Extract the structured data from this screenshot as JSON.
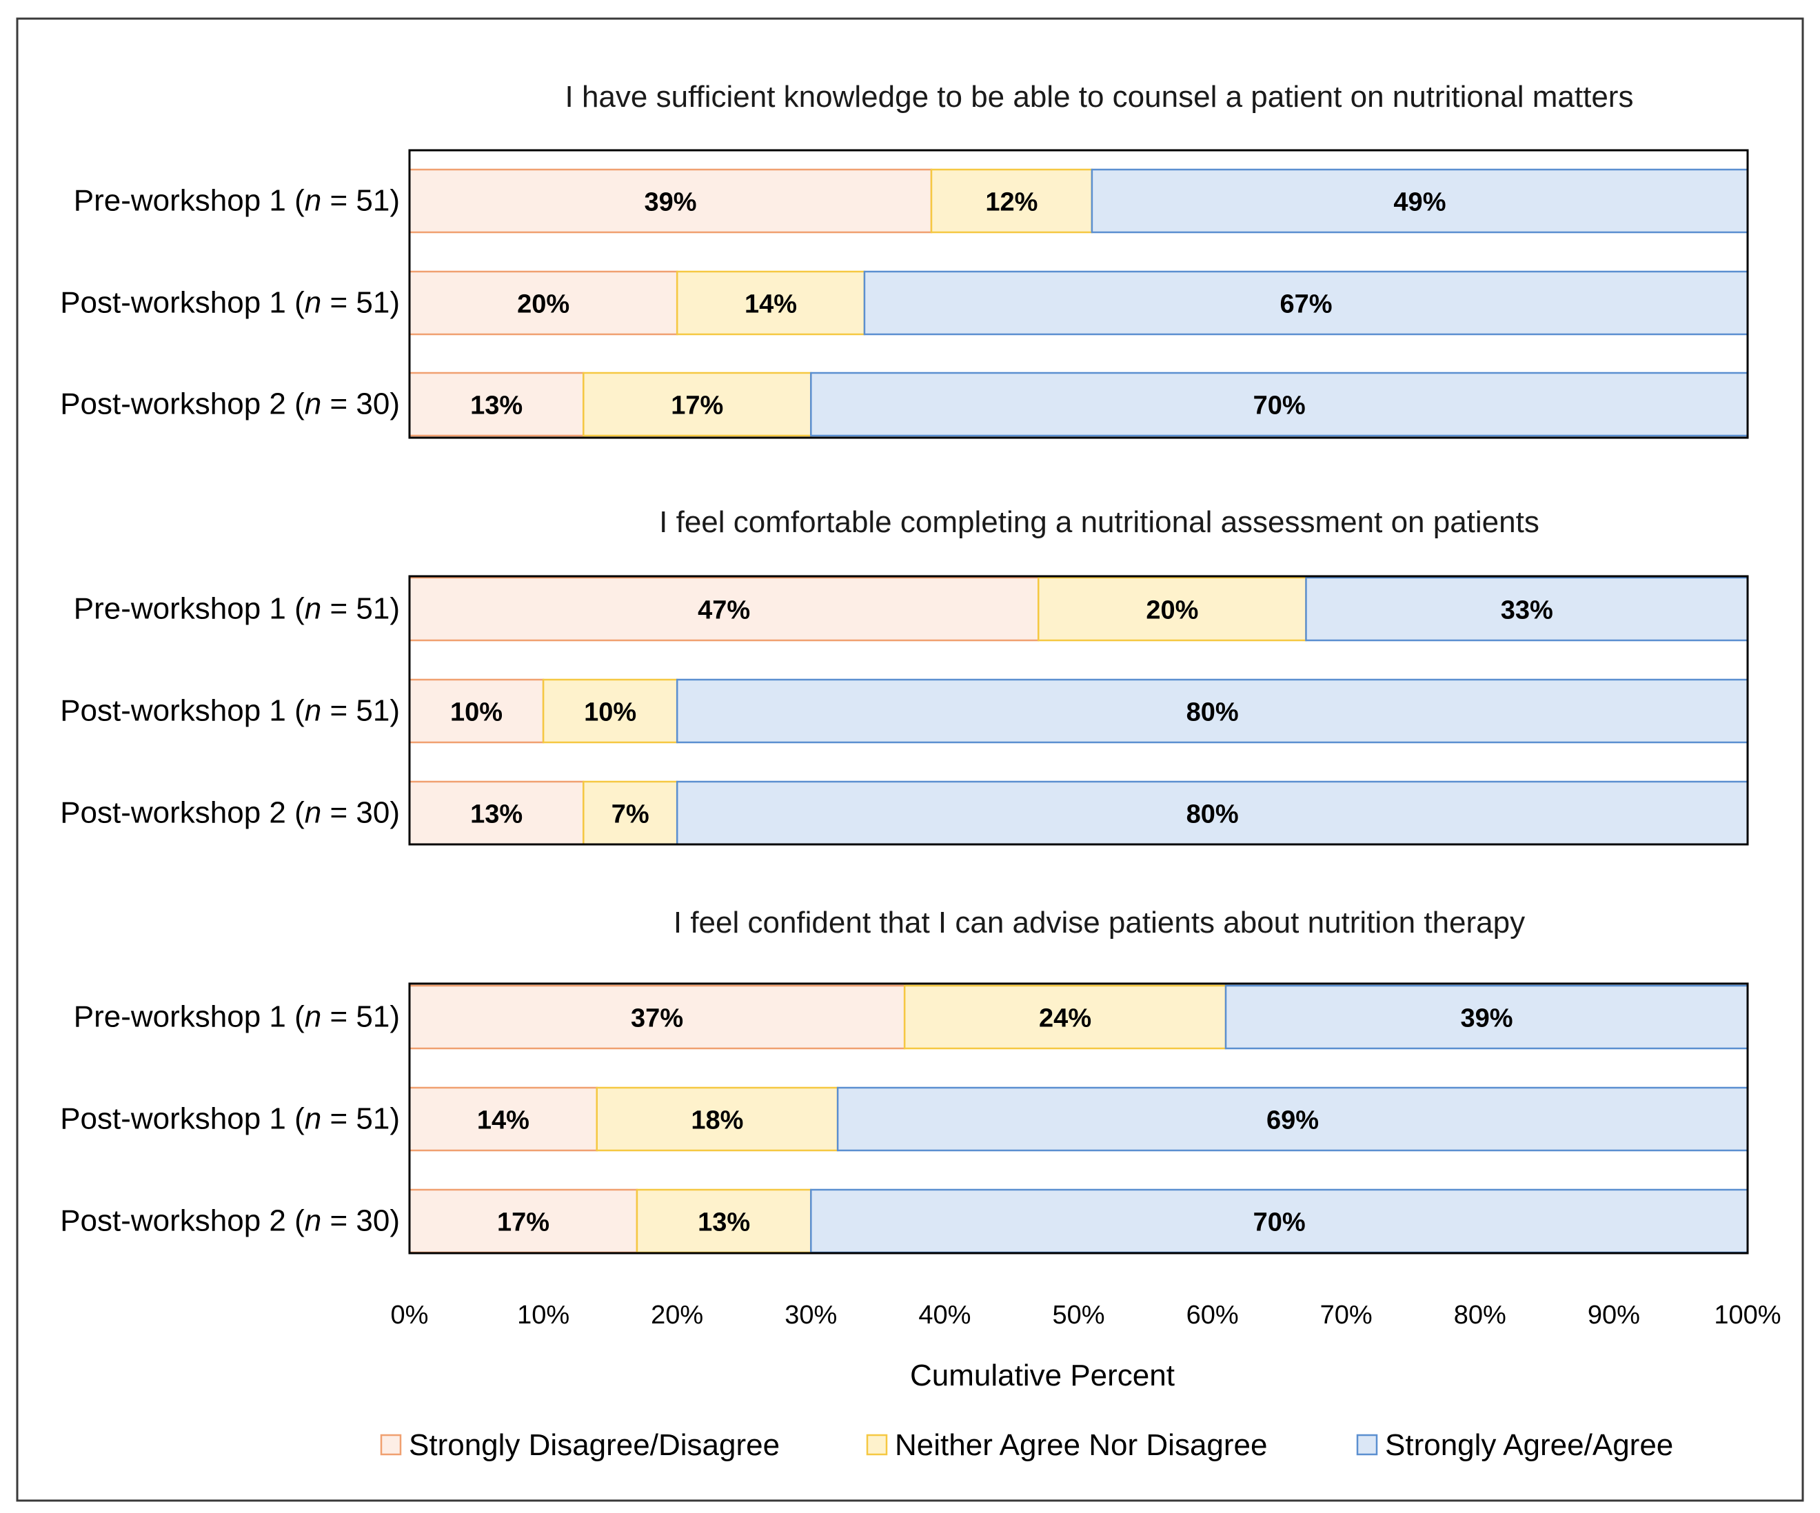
{
  "chart_data": {
    "type": "bar",
    "orientation": "horizontal",
    "stacked": true,
    "xlabel": "Cumulative Percent",
    "xlim": [
      0,
      100
    ],
    "xticks": [
      "0%",
      "10%",
      "20%",
      "30%",
      "40%",
      "50%",
      "60%",
      "70%",
      "80%",
      "90%",
      "100%"
    ],
    "legend": {
      "position": "bottom",
      "entries": [
        {
          "name": "Strongly Disagree/Disagree",
          "fill": "#fdeee6",
          "stroke": "#f0a070"
        },
        {
          "name": "Neither Agree Nor Disagree",
          "fill": "#fef2cc",
          "stroke": "#f5c842"
        },
        {
          "name": "Strongly Agree/Agree",
          "fill": "#dbe7f6",
          "stroke": "#5b8fd0"
        }
      ]
    },
    "panels": [
      {
        "title": "I have sufficient knowledge to be able to counsel a patient on nutritional matters",
        "rows": [
          {
            "label": "Pre-workshop 1",
            "n": "51",
            "values": [
              39,
              12,
              49
            ],
            "labels": [
              "39%",
              "12%",
              "49%"
            ]
          },
          {
            "label": "Post-workshop 1",
            "n": "51",
            "values": [
              20,
              14,
              67
            ],
            "labels": [
              "20%",
              "14%",
              "67%"
            ]
          },
          {
            "label": "Post-workshop 2",
            "n": "30",
            "values": [
              13,
              17,
              70
            ],
            "labels": [
              "13%",
              "17%",
              "70%"
            ]
          }
        ]
      },
      {
        "title": "I feel comfortable completing a nutritional assessment on patients",
        "rows": [
          {
            "label": "Pre-workshop 1",
            "n": "51",
            "values": [
              47,
              20,
              33
            ],
            "labels": [
              "47%",
              "20%",
              "33%"
            ]
          },
          {
            "label": "Post-workshop 1",
            "n": "51",
            "values": [
              10,
              10,
              80
            ],
            "labels": [
              "10%",
              "10%",
              "80%"
            ]
          },
          {
            "label": "Post-workshop 2",
            "n": "30",
            "values": [
              13,
              7,
              80
            ],
            "labels": [
              "13%",
              "7%",
              "80%"
            ]
          }
        ]
      },
      {
        "title": "I feel confident that I can advise patients about nutrition therapy",
        "rows": [
          {
            "label": "Pre-workshop 1",
            "n": "51",
            "values": [
              37,
              24,
              39
            ],
            "labels": [
              "37%",
              "24%",
              "39%"
            ]
          },
          {
            "label": "Post-workshop 1",
            "n": "51",
            "values": [
              14,
              18,
              69
            ],
            "labels": [
              "14%",
              "18%",
              "69%"
            ]
          },
          {
            "label": "Post-workshop 2",
            "n": "30",
            "values": [
              17,
              13,
              70
            ],
            "labels": [
              "17%",
              "13%",
              "70%"
            ]
          }
        ]
      }
    ]
  }
}
